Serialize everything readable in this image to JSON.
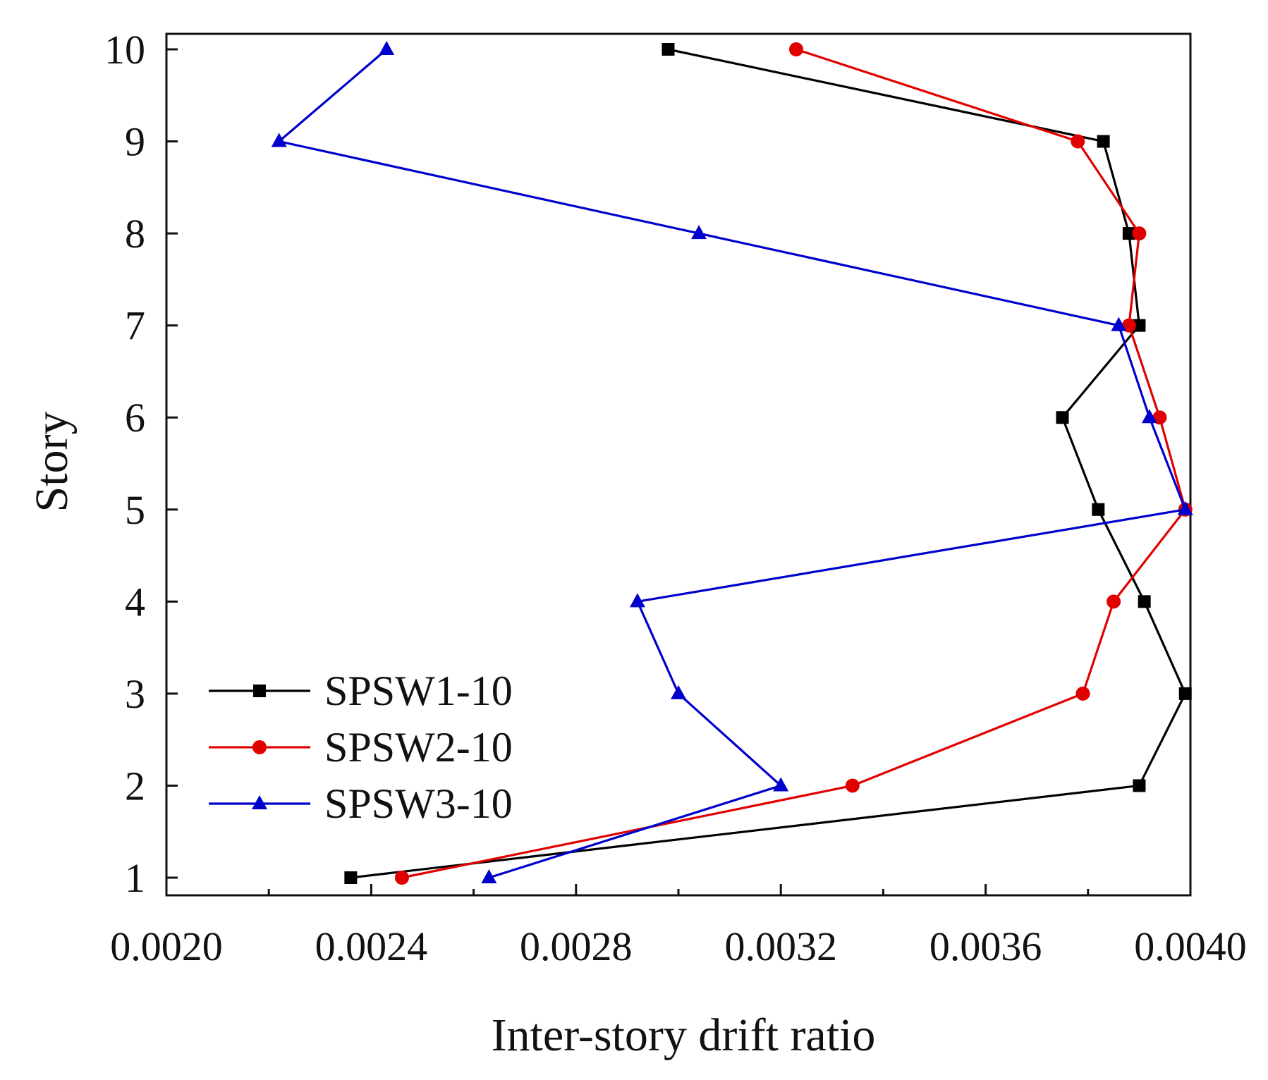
{
  "chart_data": {
    "type": "line",
    "title": "",
    "xlabel": "Inter-story drift ratio",
    "ylabel": "Story",
    "xlim": [
      0.002,
      0.004
    ],
    "ylim": [
      1,
      10
    ],
    "x_ticks": [
      "0.0020",
      "0.0024",
      "0.0028",
      "0.0032",
      "0.0036",
      "0.0040"
    ],
    "x_tick_values": [
      0.002,
      0.0024,
      0.0028,
      0.0032,
      0.0036,
      0.004
    ],
    "y_ticks": [
      "1",
      "2",
      "3",
      "4",
      "5",
      "6",
      "7",
      "8",
      "9",
      "10"
    ],
    "y_tick_values": [
      1,
      2,
      3,
      4,
      5,
      6,
      7,
      8,
      9,
      10
    ],
    "grid": false,
    "legend_position": "bottom-left",
    "series": [
      {
        "name": "SPSW1-10",
        "color": "#000000",
        "marker": "square",
        "stories": [
          1,
          2,
          3,
          4,
          5,
          6,
          7,
          8,
          9,
          10
        ],
        "values": [
          0.00236,
          0.0039,
          0.00399,
          0.00391,
          0.00382,
          0.00375,
          0.0039,
          0.00388,
          0.00383,
          0.00298
        ]
      },
      {
        "name": "SPSW2-10",
        "color": "#e00000",
        "marker": "circle",
        "stories": [
          1,
          2,
          3,
          4,
          5,
          6,
          7,
          8,
          9,
          10
        ],
        "values": [
          0.00246,
          0.00334,
          0.00379,
          0.00385,
          0.00399,
          0.00394,
          0.00388,
          0.0039,
          0.00378,
          0.00323
        ]
      },
      {
        "name": "SPSW3-10",
        "color": "#0000cc",
        "marker": "triangle",
        "stories": [
          1,
          2,
          3,
          4,
          5,
          6,
          7,
          8,
          9,
          10
        ],
        "values": [
          0.00263,
          0.0032,
          0.003,
          0.00292,
          0.00399,
          0.00392,
          0.00386,
          0.00304,
          0.00222,
          0.00243
        ]
      }
    ]
  }
}
